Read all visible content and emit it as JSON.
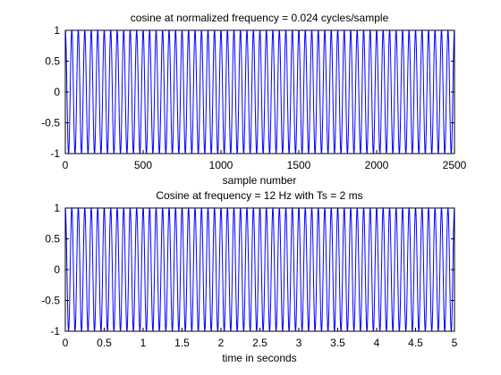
{
  "chart_data": [
    {
      "type": "line",
      "title": "cosine at normalized frequency = 0.024 cycles/sample",
      "xlabel": "sample number",
      "ylabel": "",
      "xlim": [
        0,
        2500
      ],
      "ylim": [
        -1,
        1
      ],
      "xticks": [
        "0",
        "500",
        "1000",
        "1500",
        "2000",
        "2500"
      ],
      "yticks": [
        "-1",
        "-0.5",
        "0",
        "0.5",
        "1"
      ],
      "grid": false,
      "series": [
        {
          "function": "cos",
          "frequency": 0.024,
          "x_start": 0,
          "x_end": 2500,
          "x_step": 1,
          "color": "#0000ff"
        }
      ]
    },
    {
      "type": "line",
      "title": "Cosine at frequency = 12 Hz with Ts = 2 ms",
      "xlabel": "time in seconds",
      "ylabel": "",
      "xlim": [
        0,
        5
      ],
      "ylim": [
        -1,
        1
      ],
      "xticks": [
        "0",
        "0.5",
        "1",
        "1.5",
        "2",
        "2.5",
        "3",
        "3.5",
        "4",
        "4.5",
        "5"
      ],
      "yticks": [
        "-1",
        "-0.5",
        "0",
        "0.5",
        "1"
      ],
      "grid": false,
      "series": [
        {
          "function": "cos",
          "frequency": 12,
          "x_start": 0,
          "x_end": 5,
          "x_step": 0.002,
          "color": "#0000ff"
        }
      ]
    }
  ]
}
